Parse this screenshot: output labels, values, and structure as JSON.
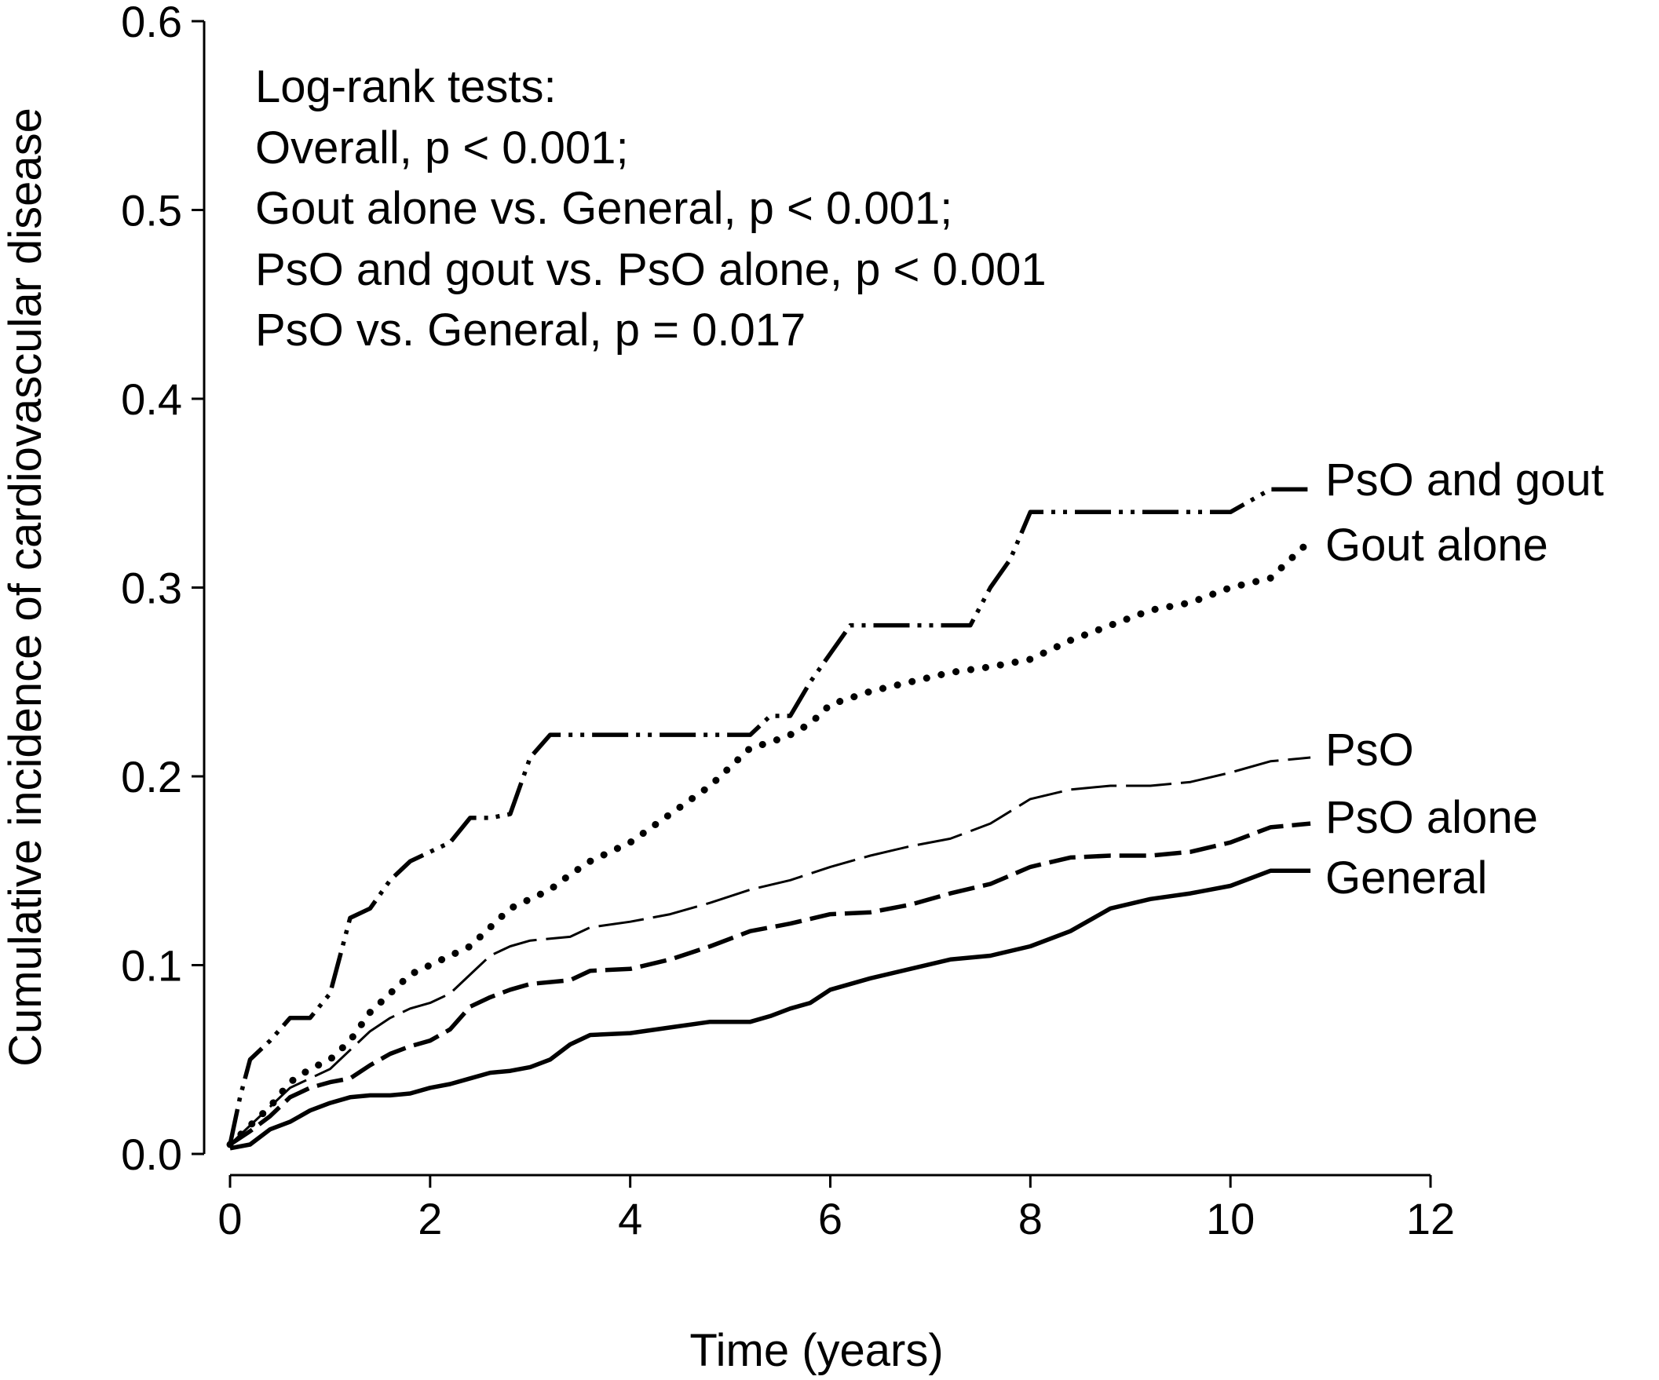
{
  "chart_data": {
    "type": "line",
    "xlabel": "Time (years)",
    "ylabel": "Cumulative incidence of cardiovascular disease",
    "xlim": [
      0,
      12
    ],
    "ylim": [
      0.0,
      0.6
    ],
    "xticks": [
      0,
      2,
      4,
      6,
      8,
      10,
      12
    ],
    "yticks": [
      "0.0",
      "0.1",
      "0.2",
      "0.3",
      "0.4",
      "0.5",
      "0.6"
    ],
    "grid": false,
    "annotation": [
      "Log-rank tests:",
      "Overall, p < 0.001;",
      "Gout alone vs. General, p < 0.001;",
      "PsO and gout vs. PsO alone, p < 0.001",
      "PsO vs. General, p = 0.017"
    ],
    "series": [
      {
        "name": "PsO and gout",
        "style": "dash-dot-dot",
        "color": "#000000",
        "x": [
          0.0,
          0.1,
          0.2,
          0.4,
          0.6,
          0.8,
          1.0,
          1.1,
          1.2,
          1.4,
          1.6,
          1.8,
          2.0,
          2.2,
          2.4,
          2.6,
          2.8,
          3.0,
          3.2,
          3.4,
          3.6,
          4.0,
          4.5,
          5.0,
          5.2,
          5.4,
          5.6,
          5.8,
          6.0,
          6.2,
          6.4,
          6.6,
          7.0,
          7.4,
          7.6,
          7.8,
          8.0,
          8.4,
          9.0,
          9.6,
          10.0,
          10.4,
          10.8
        ],
        "y": [
          0.005,
          0.03,
          0.05,
          0.06,
          0.072,
          0.072,
          0.085,
          0.105,
          0.125,
          0.13,
          0.145,
          0.155,
          0.16,
          0.165,
          0.178,
          0.178,
          0.18,
          0.21,
          0.222,
          0.222,
          0.222,
          0.222,
          0.222,
          0.222,
          0.222,
          0.232,
          0.232,
          0.25,
          0.265,
          0.28,
          0.28,
          0.28,
          0.28,
          0.28,
          0.3,
          0.315,
          0.34,
          0.34,
          0.34,
          0.34,
          0.34,
          0.352,
          0.352
        ]
      },
      {
        "name": "Gout alone",
        "style": "dotted",
        "color": "#000000",
        "x": [
          0.0,
          0.2,
          0.4,
          0.6,
          0.8,
          1.0,
          1.2,
          1.4,
          1.6,
          1.8,
          2.0,
          2.2,
          2.4,
          2.6,
          2.8,
          3.0,
          3.2,
          3.4,
          3.6,
          4.0,
          4.4,
          4.8,
          5.0,
          5.2,
          5.4,
          5.6,
          5.8,
          6.0,
          6.4,
          6.8,
          7.2,
          7.6,
          8.0,
          8.4,
          8.8,
          9.2,
          9.6,
          10.0,
          10.4,
          10.8
        ],
        "y": [
          0.005,
          0.015,
          0.025,
          0.038,
          0.045,
          0.05,
          0.06,
          0.075,
          0.085,
          0.095,
          0.1,
          0.105,
          0.11,
          0.12,
          0.13,
          0.135,
          0.14,
          0.148,
          0.155,
          0.165,
          0.18,
          0.195,
          0.205,
          0.215,
          0.218,
          0.222,
          0.228,
          0.238,
          0.245,
          0.25,
          0.255,
          0.258,
          0.262,
          0.272,
          0.28,
          0.288,
          0.292,
          0.3,
          0.305,
          0.325
        ]
      },
      {
        "name": "PsO",
        "style": "thin-dashed",
        "color": "#000000",
        "x": [
          0.0,
          0.2,
          0.4,
          0.6,
          0.8,
          1.0,
          1.2,
          1.4,
          1.6,
          1.8,
          2.0,
          2.2,
          2.4,
          2.6,
          2.8,
          3.0,
          3.4,
          3.6,
          4.0,
          4.4,
          4.8,
          5.2,
          5.6,
          6.0,
          6.4,
          6.8,
          7.2,
          7.6,
          8.0,
          8.4,
          8.8,
          9.2,
          9.6,
          10.0,
          10.4,
          10.8
        ],
        "y": [
          0.005,
          0.015,
          0.025,
          0.035,
          0.04,
          0.045,
          0.055,
          0.065,
          0.072,
          0.077,
          0.08,
          0.085,
          0.095,
          0.105,
          0.11,
          0.113,
          0.115,
          0.12,
          0.123,
          0.127,
          0.133,
          0.14,
          0.145,
          0.152,
          0.158,
          0.163,
          0.167,
          0.175,
          0.188,
          0.193,
          0.195,
          0.195,
          0.197,
          0.202,
          0.208,
          0.21
        ]
      },
      {
        "name": "PsO alone",
        "style": "dashed",
        "color": "#000000",
        "x": [
          0.0,
          0.2,
          0.4,
          0.6,
          0.8,
          1.0,
          1.2,
          1.4,
          1.6,
          1.8,
          2.0,
          2.2,
          2.4,
          2.6,
          2.8,
          3.0,
          3.4,
          3.6,
          4.0,
          4.4,
          4.8,
          5.2,
          5.6,
          6.0,
          6.4,
          6.8,
          7.2,
          7.6,
          8.0,
          8.4,
          8.8,
          9.2,
          9.6,
          10.0,
          10.4,
          10.8
        ],
        "y": [
          0.005,
          0.012,
          0.02,
          0.03,
          0.035,
          0.038,
          0.04,
          0.047,
          0.053,
          0.057,
          0.06,
          0.066,
          0.078,
          0.083,
          0.087,
          0.09,
          0.092,
          0.097,
          0.098,
          0.103,
          0.11,
          0.118,
          0.122,
          0.127,
          0.128,
          0.132,
          0.138,
          0.143,
          0.152,
          0.157,
          0.158,
          0.158,
          0.16,
          0.165,
          0.173,
          0.175
        ]
      },
      {
        "name": "General",
        "style": "solid",
        "color": "#000000",
        "x": [
          0.0,
          0.2,
          0.4,
          0.6,
          0.8,
          1.0,
          1.2,
          1.4,
          1.6,
          1.8,
          2.0,
          2.2,
          2.4,
          2.6,
          2.8,
          3.0,
          3.2,
          3.4,
          3.6,
          4.0,
          4.4,
          4.8,
          5.2,
          5.4,
          5.6,
          5.8,
          6.0,
          6.4,
          6.8,
          7.2,
          7.6,
          8.0,
          8.4,
          8.8,
          9.2,
          9.6,
          10.0,
          10.4,
          10.8
        ],
        "y": [
          0.003,
          0.005,
          0.013,
          0.017,
          0.023,
          0.027,
          0.03,
          0.031,
          0.031,
          0.032,
          0.035,
          0.037,
          0.04,
          0.043,
          0.044,
          0.046,
          0.05,
          0.058,
          0.063,
          0.064,
          0.067,
          0.07,
          0.07,
          0.073,
          0.077,
          0.08,
          0.087,
          0.093,
          0.098,
          0.103,
          0.105,
          0.11,
          0.118,
          0.13,
          0.135,
          0.138,
          0.142,
          0.15,
          0.15
        ]
      }
    ]
  }
}
